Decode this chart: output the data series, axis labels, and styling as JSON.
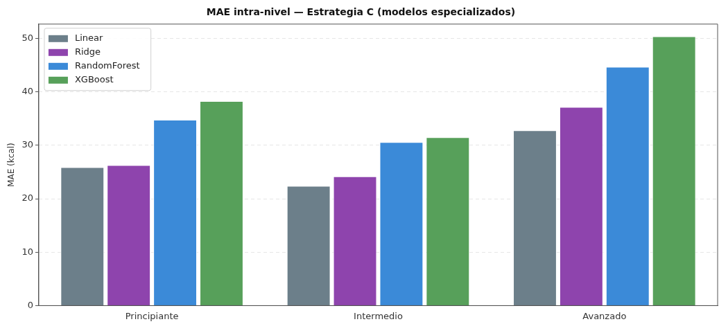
{
  "chart_data": {
    "type": "bar",
    "title": "MAE intra-nivel — Estrategia C (modelos especializados)",
    "ylabel": "MAE (kcal)",
    "categories": [
      "Principiante",
      "Intermedio",
      "Avanzado"
    ],
    "series": [
      {
        "name": "Linear",
        "color": "#6c7f8a",
        "values": [
          25.9,
          22.4,
          32.8
        ]
      },
      {
        "name": "Ridge",
        "color": "#8e44ad",
        "values": [
          26.3,
          24.2,
          37.2
        ]
      },
      {
        "name": "RandomForest",
        "color": "#3b8ad8",
        "values": [
          34.8,
          30.6,
          44.7
        ]
      },
      {
        "name": "XGBoost",
        "color": "#57a05a",
        "values": [
          38.3,
          31.5,
          50.4
        ]
      }
    ],
    "ylim": [
      0,
      52.7
    ],
    "yticks": [
      0,
      10,
      20,
      30,
      40,
      50
    ],
    "grid": "y",
    "legend": "top left"
  }
}
